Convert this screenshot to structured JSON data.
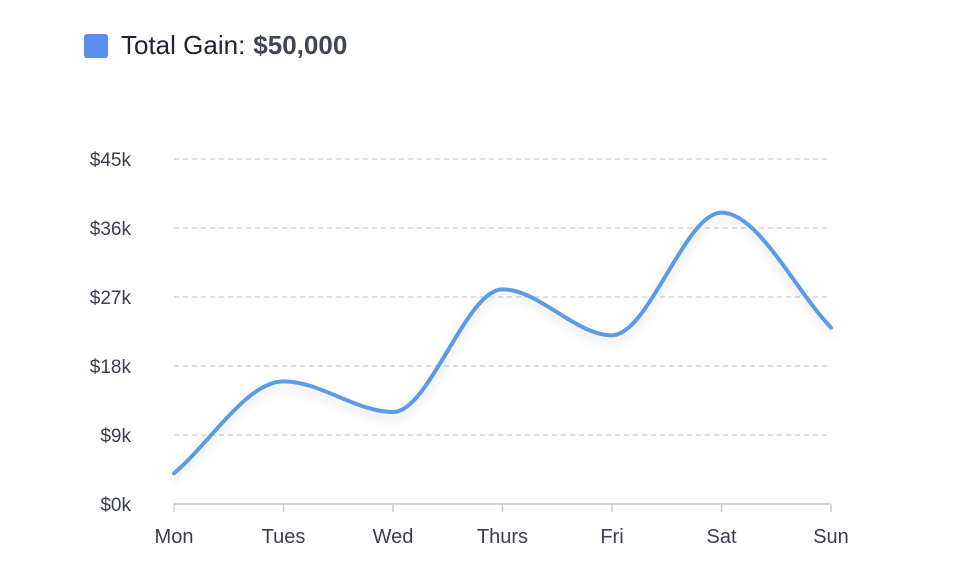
{
  "legend": {
    "label": "Total Gain:",
    "value": "$50,000"
  },
  "chart_data": {
    "type": "line",
    "categories": [
      "Mon",
      "Tues",
      "Wed",
      "Thurs",
      "Fri",
      "Sat",
      "Sun"
    ],
    "series": [
      {
        "values": [
          4000,
          16000,
          12000,
          28000,
          22000,
          38000,
          23000
        ]
      }
    ],
    "y_ticks": [
      "$0k",
      "$9k",
      "$18k",
      "$27k",
      "$36k",
      "$45k"
    ],
    "ylim": [
      0,
      45000
    ],
    "grid": true,
    "smooth": true,
    "legend_position": "top-left",
    "colors": {
      "line": "#5b9be8",
      "swatch": "#5b8def",
      "grid": "#d3d6dc",
      "axis": "#c6c9cf"
    }
  }
}
